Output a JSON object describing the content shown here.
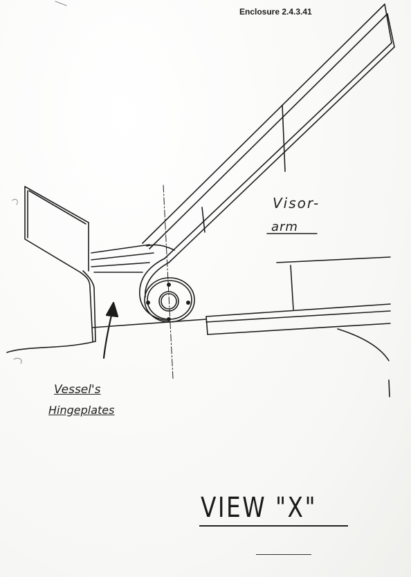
{
  "document": {
    "enclosure_label": "Enclosure  2.4.3.41",
    "view_title": "VIEW \"X\"",
    "labels": {
      "visor_arm_line1": "Visor-",
      "visor_arm_line2": "arm",
      "hingeplates_line1": "Vessel's",
      "hingeplates_line2": "Hingeplates"
    }
  }
}
